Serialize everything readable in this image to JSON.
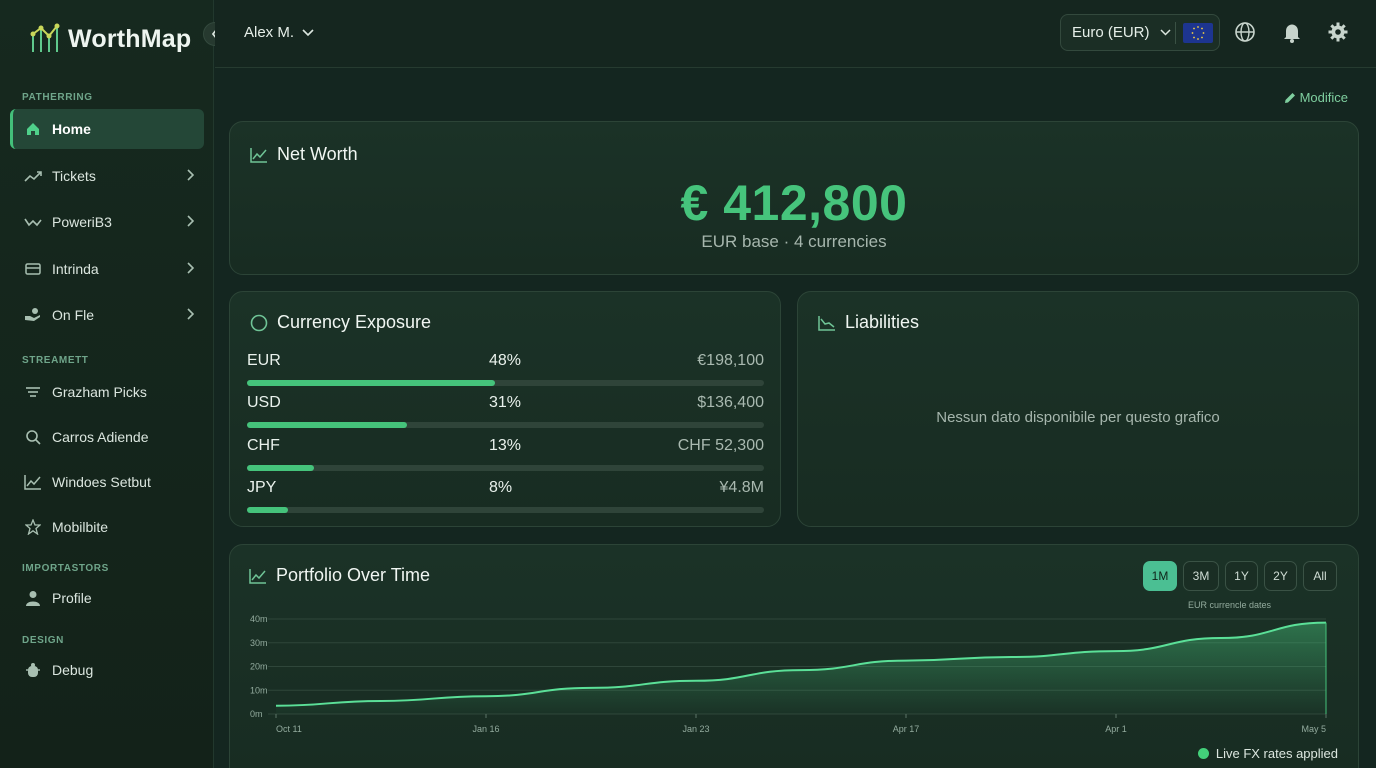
{
  "app": {
    "name": "WorthMap"
  },
  "user": {
    "name": "Alex M."
  },
  "sidebar": {
    "sections": [
      {
        "title": "PATHERRING"
      },
      {
        "title": "STREAMETT"
      },
      {
        "title": "IMPORTASTORS"
      },
      {
        "title": "DESIGN"
      }
    ],
    "items": [
      {
        "label": "Home",
        "icon": "home-icon",
        "active": true
      },
      {
        "label": "Tickets",
        "icon": "trend-up-icon"
      },
      {
        "label": "PoweriB3",
        "icon": "trend-wave-icon"
      },
      {
        "label": "Intrinda",
        "icon": "card-icon"
      },
      {
        "label": "On Fle",
        "icon": "hand-coin-icon"
      },
      {
        "label": "Grazham Picks",
        "icon": "filter-icon"
      },
      {
        "label": "Carros Adiende",
        "icon": "search-icon"
      },
      {
        "label": "Windoes Setbut",
        "icon": "line-chart-icon"
      },
      {
        "label": "Mobilbite",
        "icon": "star-icon"
      },
      {
        "label": "Profile",
        "icon": "user-icon"
      },
      {
        "label": "Debug",
        "icon": "bug-icon"
      }
    ]
  },
  "topbar": {
    "currency": "Euro (EUR)"
  },
  "edit_label": "Modifice",
  "net_worth": {
    "title": "Net Worth",
    "value": "€ 412,800",
    "subtitle": "EUR base · 4 currencies"
  },
  "exposure": {
    "title": "Currency Exposure",
    "rows": [
      {
        "code": "EUR",
        "pct_label": "48%",
        "amount": "€198,100",
        "fraction": 0.48
      },
      {
        "code": "USD",
        "pct_label": "31%",
        "amount": "$136,400",
        "fraction": 0.31
      },
      {
        "code": "CHF",
        "pct_label": "13%",
        "amount": "CHF 52,300",
        "fraction": 0.13
      },
      {
        "code": "JPY",
        "pct_label": "8%",
        "amount": "¥4.8M",
        "fraction": 0.08
      }
    ]
  },
  "liabilities": {
    "title": "Liabilities",
    "empty_message": "Nessun dato disponibile per questo grafico"
  },
  "portfolio": {
    "title": "Portfolio Over Time",
    "ranges": [
      {
        "label": "1M",
        "active": true
      },
      {
        "label": "3M"
      },
      {
        "label": "1Y"
      },
      {
        "label": "2Y"
      },
      {
        "label": "All"
      }
    ],
    "note": "EUR currencle dates",
    "legend": "Live FX rates applied"
  },
  "colors": {
    "accent": "#45c37b",
    "background": "#142620",
    "card": "#1a2f25"
  },
  "chart_data": {
    "type": "area",
    "x": [
      "Oct 11",
      "",
      "Jan 16",
      "",
      "Jan 23",
      "",
      "Apr 17",
      "",
      "Apr 1",
      "",
      "May 5"
    ],
    "y_ticks": [
      "0m",
      "10m",
      "20m",
      "30m",
      "40m"
    ],
    "y_values_m": [
      3.5,
      5.5,
      7.5,
      11,
      14,
      18.5,
      22.5,
      24,
      26.5,
      32,
      38.5
    ],
    "ylim": [
      0,
      40
    ],
    "grid": true,
    "legend": "bottom-right"
  }
}
